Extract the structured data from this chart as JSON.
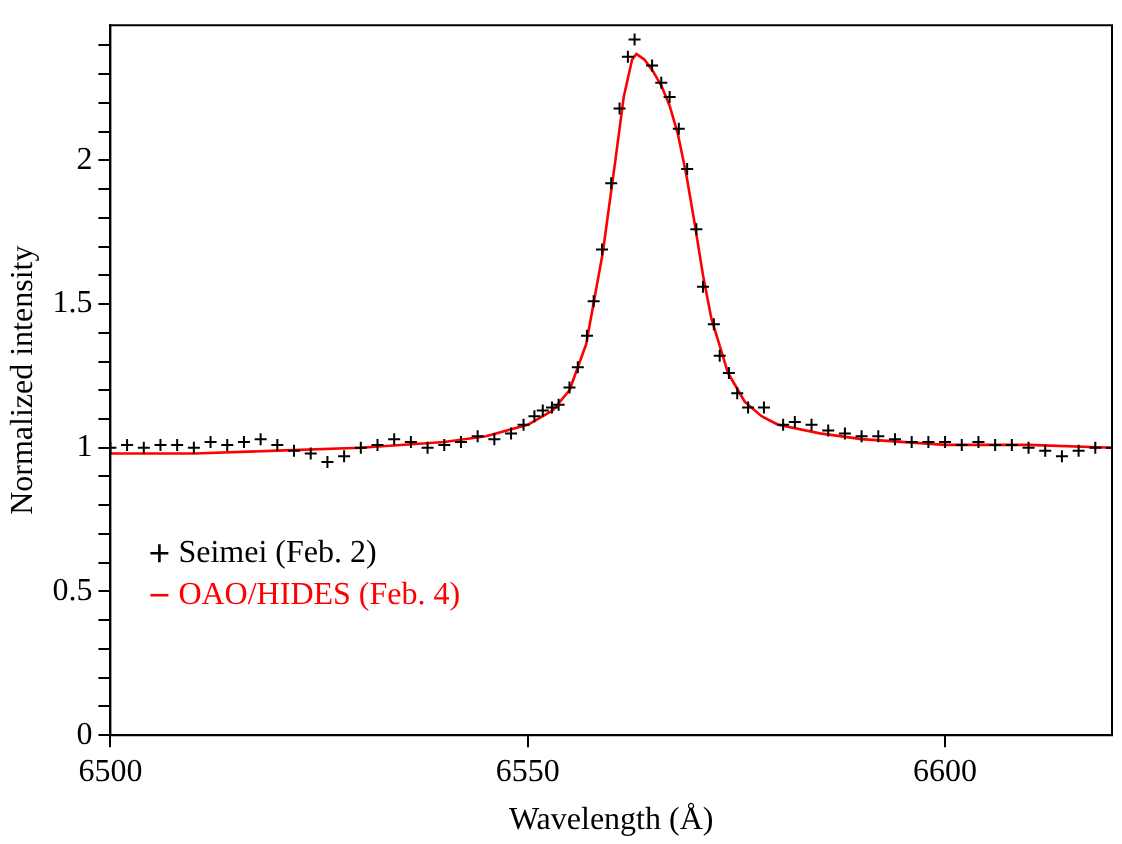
{
  "chart_data": {
    "type": "scatter",
    "xlabel": "Wavelength (Å)",
    "ylabel": "Normalized intensity",
    "xlim": [
      6500,
      6620
    ],
    "ylim": [
      0,
      2.47
    ],
    "xticks": [
      6500,
      6550,
      6600
    ],
    "yticks": [
      0,
      {
        "value": 0.1,
        "label": null
      },
      {
        "value": 0.2,
        "label": null
      },
      {
        "value": 0.3,
        "label": null
      },
      {
        "value": 0.4,
        "label": null
      },
      0.5,
      {
        "value": 0.6,
        "label": null
      },
      {
        "value": 0.7,
        "label": null
      },
      {
        "value": 0.8,
        "label": null
      },
      {
        "value": 0.9,
        "label": null
      },
      1,
      {
        "value": 1.1,
        "label": null
      },
      {
        "value": 1.2,
        "label": null
      },
      {
        "value": 1.3,
        "label": null
      },
      {
        "value": 1.4,
        "label": null
      },
      1.5,
      {
        "value": 1.6,
        "label": null
      },
      {
        "value": 1.7,
        "label": null
      },
      {
        "value": 1.8,
        "label": null
      },
      {
        "value": 1.9,
        "label": null
      },
      2,
      {
        "value": 2.1,
        "label": null
      },
      {
        "value": 2.2,
        "label": null
      },
      {
        "value": 2.3,
        "label": null
      },
      {
        "value": 2.4,
        "label": null
      }
    ],
    "grid": false,
    "legend": "bottom left",
    "marker": "cross",
    "series": [
      {
        "name": "Seimei (Feb. 2)",
        "color": "#000000",
        "x": [
          6500,
          6502,
          6504,
          6506,
          6508,
          6510,
          6512,
          6514,
          6516,
          6518,
          6520,
          6522,
          6524,
          6526,
          6528,
          6530,
          6532,
          6534,
          6536,
          6538,
          6540,
          6542,
          6544,
          6546,
          6548,
          6549.5,
          6550.8,
          6551.8,
          6552.9,
          6553.7,
          6555,
          6556,
          6557.1,
          6557.9,
          6558.9,
          6560,
          6561,
          6562,
          6562.8,
          6564.9,
          6566,
          6567,
          6568.1,
          6569.1,
          6570.2,
          6571,
          6572.3,
          6573,
          6574.1,
          6575.1,
          6576.4,
          6578.3,
          6580.6,
          6582,
          6584,
          6586,
          6588,
          6590,
          6592,
          6594,
          6596,
          6598,
          6600,
          6602,
          6604,
          6606,
          6608,
          6610,
          6612,
          6614,
          6616,
          6618,
          6620
        ],
        "values": [
          1.0,
          1.01,
          1.0,
          1.01,
          1.01,
          1.0,
          1.02,
          1.01,
          1.02,
          1.03,
          1.01,
          0.99,
          0.98,
          0.95,
          0.97,
          1.0,
          1.01,
          1.03,
          1.02,
          1.0,
          1.01,
          1.02,
          1.04,
          1.03,
          1.05,
          1.08,
          1.11,
          1.13,
          1.14,
          1.15,
          1.21,
          1.28,
          1.39,
          1.51,
          1.69,
          1.92,
          2.18,
          2.36,
          2.42,
          2.33,
          2.27,
          2.22,
          2.11,
          1.97,
          1.76,
          1.56,
          1.43,
          1.32,
          1.26,
          1.19,
          1.14,
          1.14,
          1.08,
          1.09,
          1.08,
          1.06,
          1.05,
          1.04,
          1.04,
          1.03,
          1.02,
          1.02,
          1.02,
          1.01,
          1.02,
          1.01,
          1.01,
          1.0,
          0.99,
          0.97,
          0.99,
          1.0,
          1.0
        ]
      },
      {
        "name": "OAO/HIDES (Feb. 4)",
        "type": "line",
        "color": "#ff0000",
        "marker": "none",
        "x": [
          6500,
          6510,
          6520,
          6530,
          6540,
          6545,
          6550,
          6553,
          6555,
          6557,
          6559,
          6560.5,
          6561.5,
          6562.5,
          6563,
          6564,
          6565,
          6566,
          6567,
          6568,
          6569,
          6570,
          6571,
          6572,
          6574,
          6576,
          6578,
          6580,
          6585,
          6590,
          6600,
          6610,
          6620
        ],
        "values": [
          0.98,
          0.98,
          0.99,
          1.0,
          1.02,
          1.04,
          1.08,
          1.13,
          1.2,
          1.36,
          1.68,
          2.0,
          2.22,
          2.35,
          2.37,
          2.35,
          2.31,
          2.26,
          2.19,
          2.09,
          1.95,
          1.78,
          1.6,
          1.45,
          1.26,
          1.16,
          1.11,
          1.08,
          1.05,
          1.03,
          1.01,
          1.01,
          1.0
        ]
      }
    ]
  }
}
